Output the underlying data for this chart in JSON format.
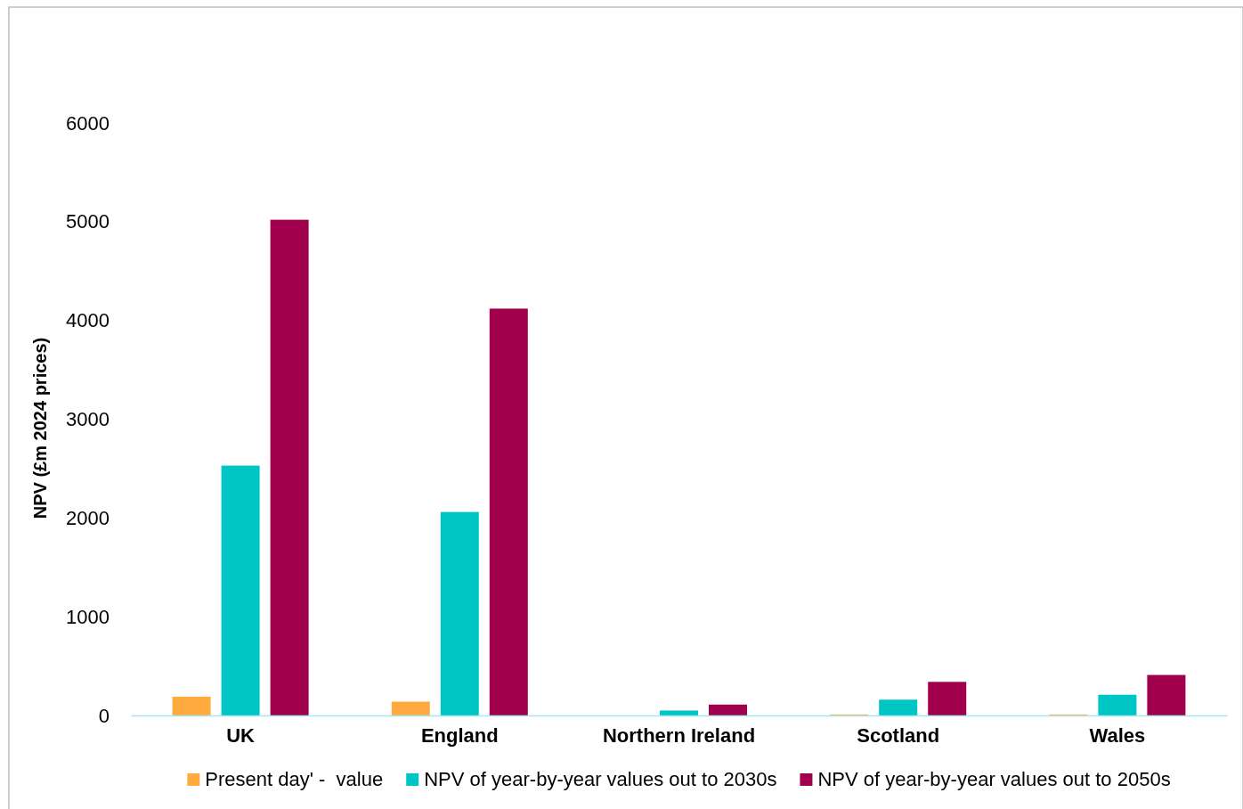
{
  "chart_data": {
    "type": "bar",
    "ylabel": "NPV (£m 2024 prices)",
    "categories": [
      "UK",
      "England",
      "Northern Ireland",
      "Scotland",
      "Wales"
    ],
    "series": [
      {
        "name": "Present day' -  value",
        "color": "#ffab40",
        "values": [
          190,
          140,
          null,
          10,
          10
        ]
      },
      {
        "name": "NPV of year-by-year values out to 2030s",
        "color": "#00c5c5",
        "values": [
          2530,
          2060,
          50,
          160,
          210
        ]
      },
      {
        "name": "NPV of year-by-year values out to 2050s",
        "color": "#a1004d",
        "values": [
          5020,
          4120,
          110,
          340,
          410
        ]
      }
    ],
    "ylim": [
      0,
      6000
    ],
    "yticks": [
      0,
      1000,
      2000,
      3000,
      4000,
      5000,
      6000
    ],
    "grid": false,
    "legend": "bottom"
  }
}
